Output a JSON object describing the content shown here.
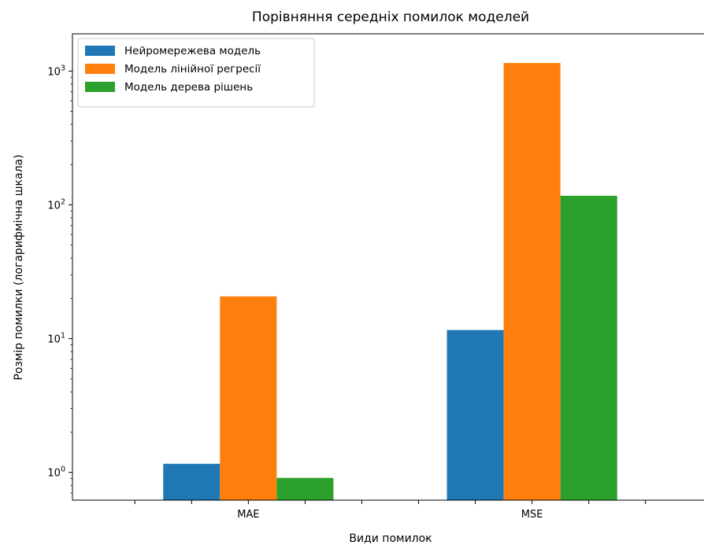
{
  "chart_data": {
    "type": "bar",
    "title": "Порівняння середніх помилок моделей",
    "xlabel": "Види помилок",
    "ylabel": "Розмір помилки (логарифмічна шкала)",
    "yscale": "log",
    "ylim": [
      0.62,
      1900
    ],
    "categories": [
      "MAE",
      "MSE"
    ],
    "series": [
      {
        "name": "Нейромережева модель",
        "color": "#1f77b4",
        "values": [
          1.16,
          11.6
        ]
      },
      {
        "name": "Модель лінійної регресії",
        "color": "#ff7f0e",
        "values": [
          20.7,
          1150
        ]
      },
      {
        "name": "Модель дерева рішень",
        "color": "#2ca02c",
        "values": [
          0.91,
          117
        ]
      }
    ],
    "yticks": [
      {
        "value": 1,
        "base": "10",
        "exp": "0"
      },
      {
        "value": 10,
        "base": "10",
        "exp": "1"
      },
      {
        "value": 100,
        "base": "10",
        "exp": "2"
      },
      {
        "value": 1000,
        "base": "10",
        "exp": "3"
      }
    ],
    "legend_position": "upper-left",
    "grid": false
  }
}
